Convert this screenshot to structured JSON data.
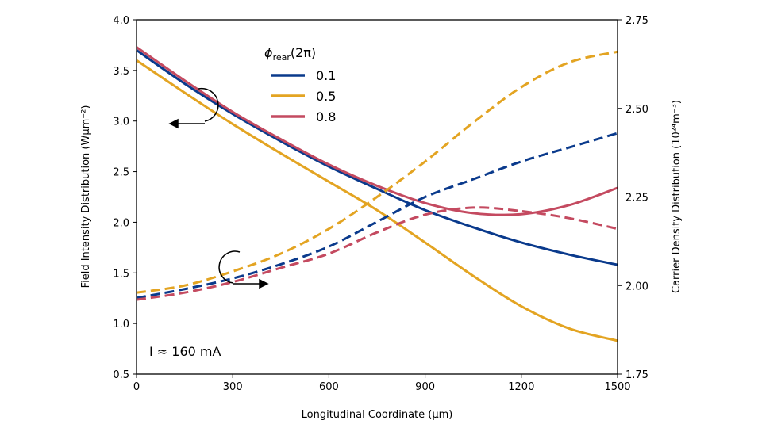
{
  "chart_data": {
    "type": "line",
    "xlabel": "Longitudinal Coordinate (μm)",
    "ylabel": "Field Intensity Distribution (Wμm⁻²)",
    "ylabel_right": "Carrier Density Distribution (10²⁴m⁻³)",
    "xlim": [
      0,
      1500
    ],
    "ylim": [
      0.5,
      4.0
    ],
    "ylim_right": [
      1.75,
      2.75
    ],
    "xticks": [
      "0",
      "300",
      "600",
      "900",
      "1200",
      "1500"
    ],
    "yticks": [
      "0.5",
      "1.0",
      "1.5",
      "2.0",
      "2.5",
      "3.0",
      "3.5",
      "4.0"
    ],
    "yticks_right": [
      "1.75",
      "2.00",
      "2.25",
      "2.50",
      "2.75"
    ],
    "grid": false,
    "legend": {
      "title_main": "ϕ",
      "title_sub": "rear",
      "title_tail": "(2π)",
      "placement": "top-center"
    },
    "annotation": "I ≈ 160 mA",
    "x": [
      0,
      150,
      300,
      450,
      600,
      750,
      900,
      1050,
      1200,
      1350,
      1500
    ],
    "series": [
      {
        "name": "0.1",
        "color": "#0a3a8c",
        "axis": "left",
        "style": "solid",
        "values": [
          3.7,
          3.37,
          3.07,
          2.8,
          2.55,
          2.33,
          2.12,
          1.95,
          1.8,
          1.68,
          1.58
        ]
      },
      {
        "name": "0.5",
        "color": "#e3a422",
        "axis": "left",
        "style": "solid",
        "values": [
          3.6,
          3.28,
          2.97,
          2.68,
          2.4,
          2.12,
          1.8,
          1.47,
          1.17,
          0.95,
          0.83
        ]
      },
      {
        "name": "0.8",
        "color": "#c44a60",
        "axis": "left",
        "style": "solid",
        "values": [
          3.73,
          3.4,
          3.09,
          2.82,
          2.57,
          2.36,
          2.19,
          2.09,
          2.08,
          2.17,
          2.34
        ]
      },
      {
        "name": "0.1",
        "color": "#0a3a8c",
        "axis": "right",
        "style": "dashed",
        "values": [
          1.965,
          1.99,
          2.02,
          2.06,
          2.11,
          2.18,
          2.25,
          2.3,
          2.35,
          2.39,
          2.43
        ]
      },
      {
        "name": "0.5",
        "color": "#e3a422",
        "axis": "right",
        "style": "dashed",
        "values": [
          1.98,
          2.0,
          2.04,
          2.09,
          2.16,
          2.25,
          2.35,
          2.46,
          2.56,
          2.63,
          2.66
        ]
      },
      {
        "name": "0.8",
        "color": "#c44a60",
        "axis": "right",
        "style": "dashed",
        "values": [
          1.96,
          1.98,
          2.01,
          2.05,
          2.09,
          2.15,
          2.2,
          2.22,
          2.21,
          2.19,
          2.16
        ]
      }
    ]
  }
}
